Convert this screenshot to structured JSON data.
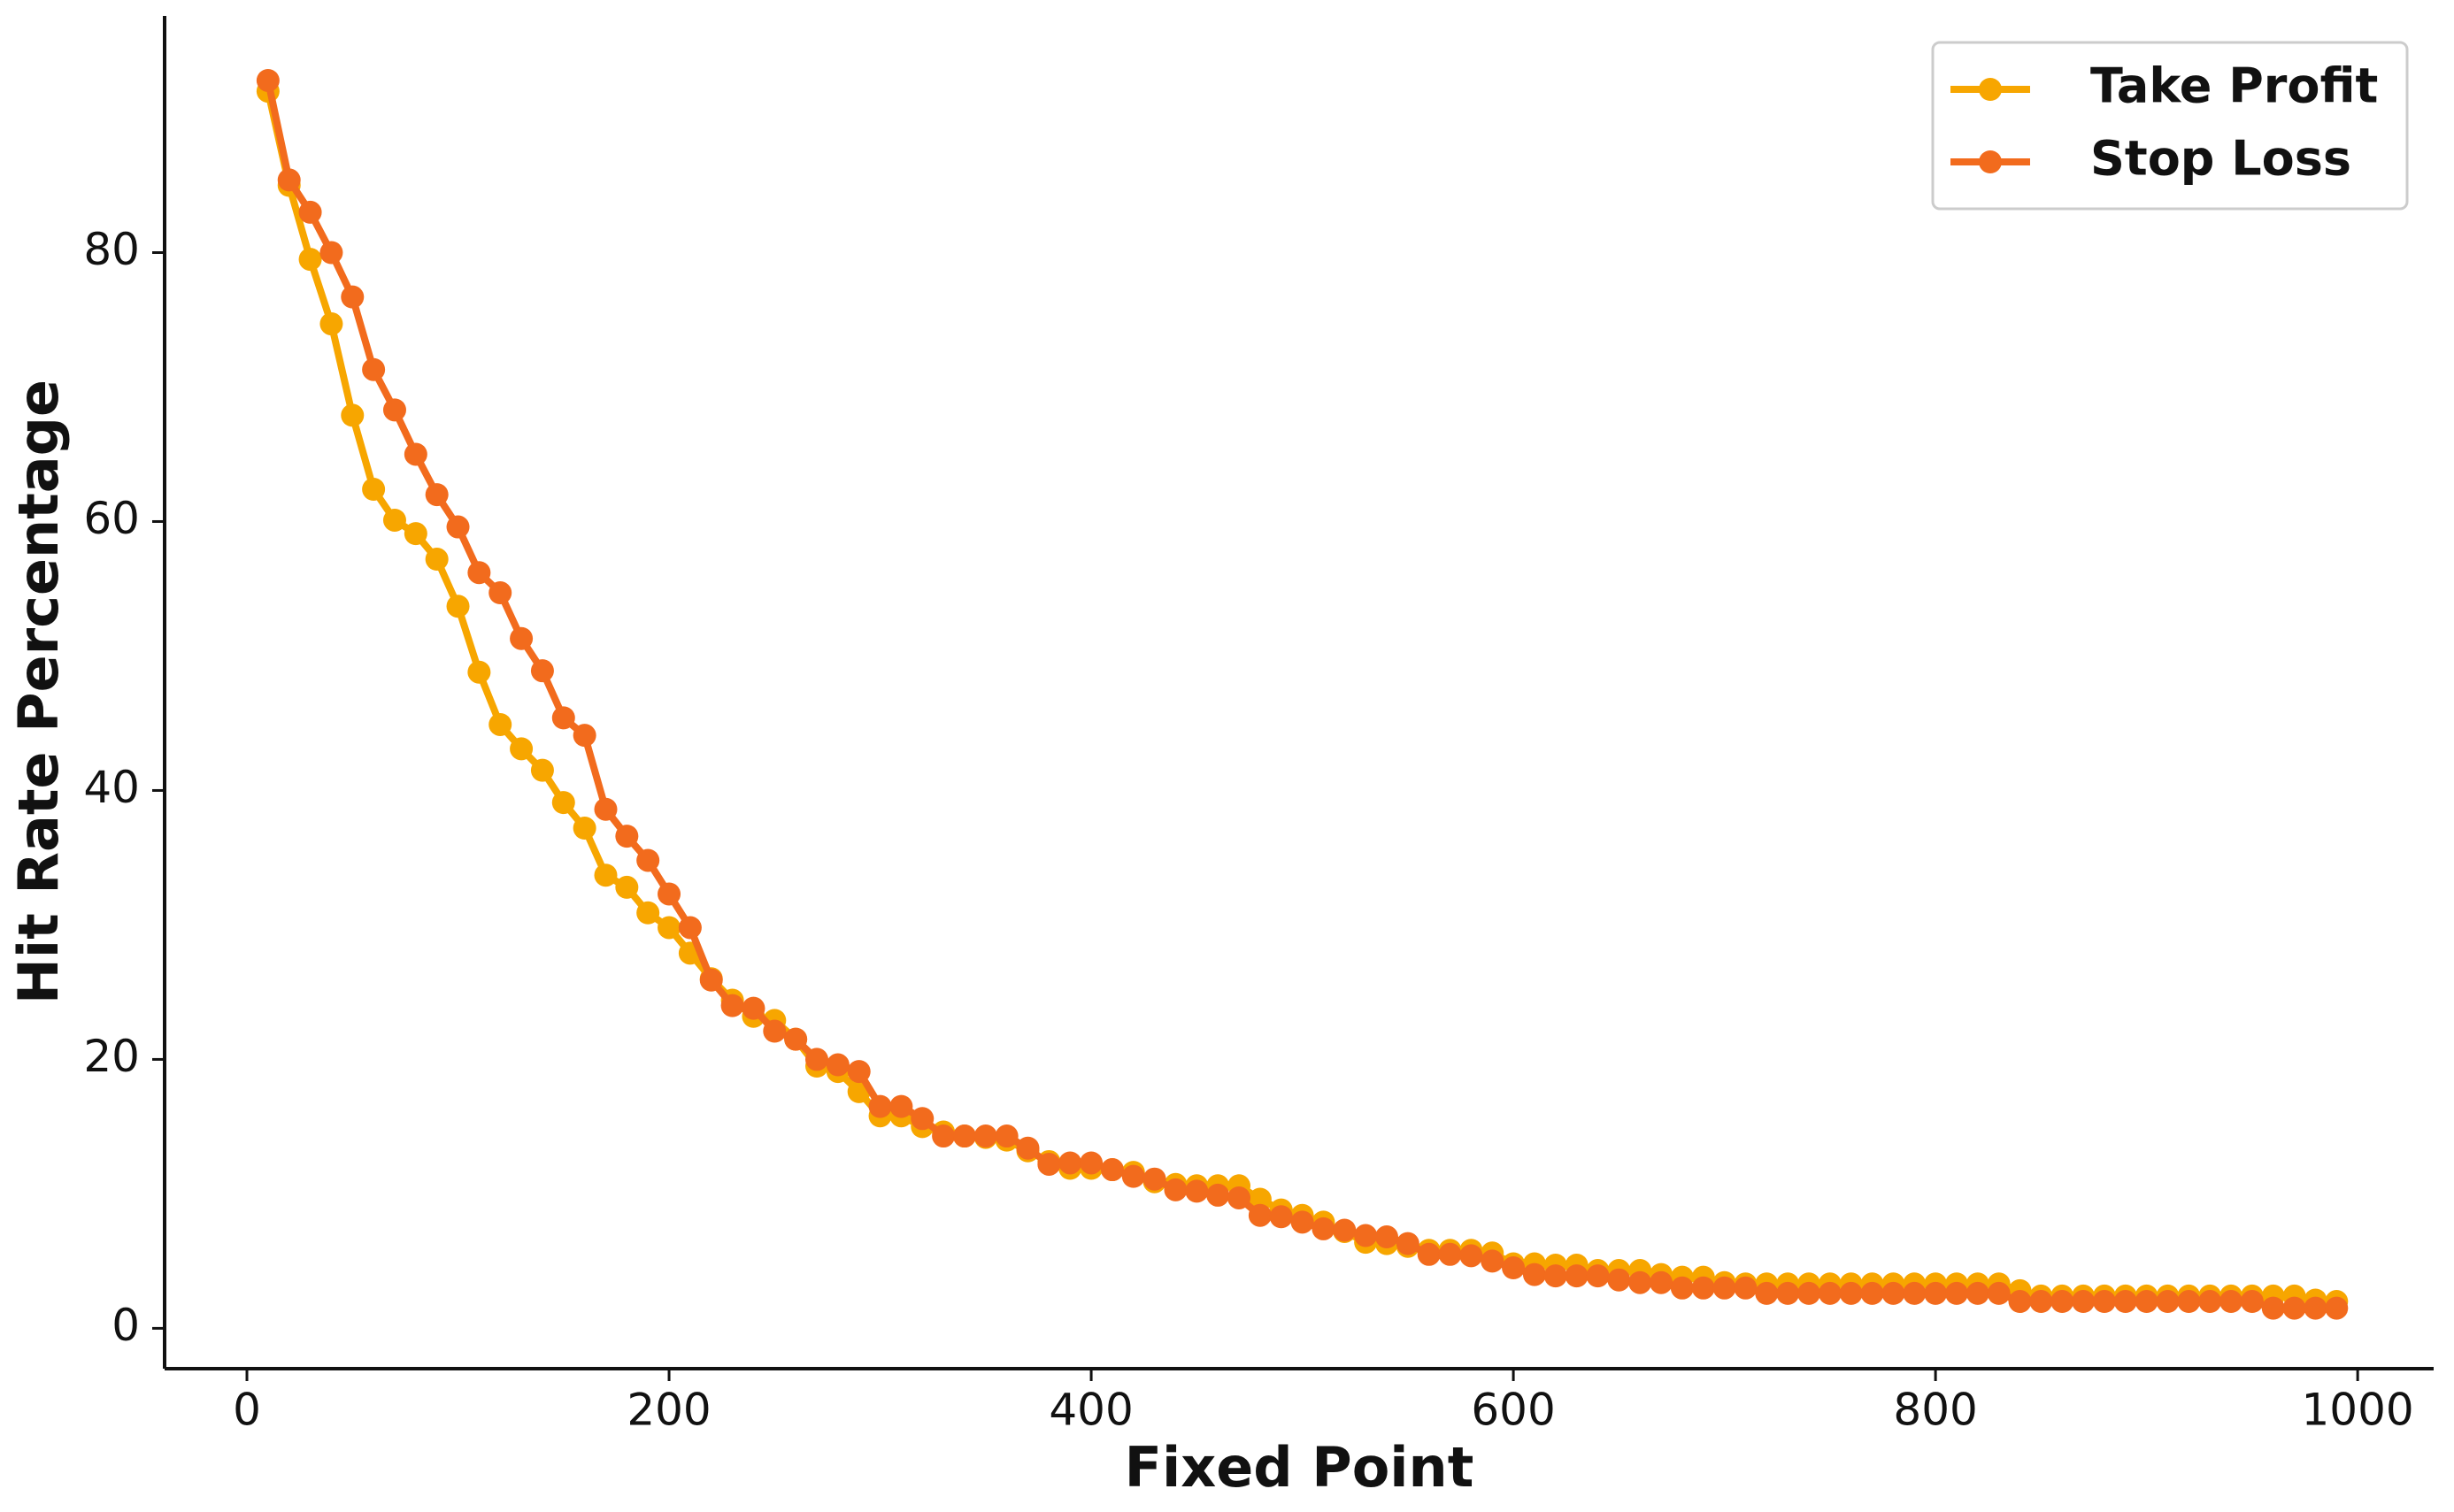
{
  "chart_data": {
    "type": "line",
    "xlabel": "Fixed Point",
    "ylabel": "Hit Rate Percentage",
    "x": [
      10,
      20,
      30,
      40,
      50,
      60,
      70,
      80,
      90,
      100,
      110,
      120,
      130,
      140,
      150,
      160,
      170,
      180,
      190,
      200,
      210,
      220,
      230,
      240,
      250,
      260,
      270,
      280,
      290,
      300,
      310,
      320,
      330,
      340,
      350,
      360,
      370,
      380,
      390,
      400,
      410,
      420,
      430,
      440,
      450,
      460,
      470,
      480,
      490,
      500,
      510,
      520,
      530,
      540,
      550,
      560,
      570,
      580,
      590,
      600,
      610,
      620,
      630,
      640,
      650,
      660,
      670,
      680,
      690,
      700,
      710,
      720,
      730,
      740,
      750,
      760,
      770,
      780,
      790,
      800,
      810,
      820,
      830,
      840,
      850,
      860,
      870,
      880,
      890,
      900,
      910,
      920,
      930,
      940,
      950,
      960,
      970,
      980,
      990
    ],
    "series": [
      {
        "name": "Take Profit",
        "color": "#f7a600",
        "values": [
          92,
          85,
          79.5,
          74.7,
          67.9,
          62.4,
          60.1,
          59.1,
          57.2,
          53.7,
          48.8,
          44.9,
          43.1,
          41.5,
          39.1,
          37.2,
          33.7,
          32.8,
          30.9,
          29.8,
          27.9,
          26.0,
          24.4,
          23.2,
          22.9,
          21.5,
          19.5,
          19.1,
          17.6,
          15.8,
          15.8,
          15.0,
          14.6,
          14.3,
          14.2,
          14.0,
          13.2,
          12.4,
          11.9,
          11.9,
          11.8,
          11.6,
          10.9,
          10.7,
          10.6,
          10.6,
          10.6,
          9.6,
          8.8,
          8.4,
          7.9,
          7.2,
          6.4,
          6.3,
          6.1,
          5.8,
          5.8,
          5.8,
          5.6,
          4.8,
          4.8,
          4.7,
          4.7,
          4.3,
          4.3,
          4.3,
          4.0,
          3.8,
          3.8,
          3.4,
          3.3,
          3.3,
          3.3,
          3.3,
          3.3,
          3.3,
          3.3,
          3.3,
          3.3,
          3.3,
          3.3,
          3.3,
          3.3,
          2.8,
          2.4,
          2.4,
          2.4,
          2.4,
          2.4,
          2.4,
          2.4,
          2.4,
          2.4,
          2.4,
          2.4,
          2.4,
          2.4,
          2.1,
          2.0
        ]
      },
      {
        "name": "Stop Loss",
        "color": "#f26b1d",
        "values": [
          92.8,
          85.4,
          83.0,
          80.0,
          76.7,
          71.3,
          68.3,
          65.0,
          62.0,
          59.6,
          56.2,
          54.7,
          51.3,
          48.9,
          45.4,
          44.1,
          38.6,
          36.6,
          34.8,
          32.3,
          29.8,
          25.9,
          24.0,
          23.8,
          22.1,
          21.5,
          20.0,
          19.6,
          19.1,
          16.5,
          16.5,
          15.6,
          14.3,
          14.3,
          14.3,
          14.3,
          13.4,
          12.2,
          12.3,
          12.3,
          11.8,
          11.3,
          11.1,
          10.3,
          10.2,
          9.9,
          9.7,
          8.4,
          8.3,
          7.9,
          7.4,
          7.3,
          6.9,
          6.8,
          6.3,
          5.5,
          5.5,
          5.4,
          5.0,
          4.5,
          4.0,
          3.9,
          3.9,
          3.9,
          3.6,
          3.4,
          3.4,
          3.0,
          3.0,
          3.0,
          3.0,
          2.6,
          2.6,
          2.6,
          2.6,
          2.6,
          2.6,
          2.6,
          2.6,
          2.6,
          2.6,
          2.6,
          2.6,
          2.0,
          2.0,
          2.0,
          2.0,
          2.0,
          2.0,
          2.0,
          2.0,
          2.0,
          2.0,
          2.0,
          2.0,
          1.5,
          1.5,
          1.5,
          1.5
        ]
      }
    ],
    "xlim": [
      -39,
      1036
    ],
    "ylim": [
      -3,
      97.6
    ],
    "xticks": [
      0,
      200,
      400,
      600,
      800,
      1000
    ],
    "yticks": [
      0,
      20,
      40,
      60,
      80
    ],
    "legend": "upper right"
  }
}
